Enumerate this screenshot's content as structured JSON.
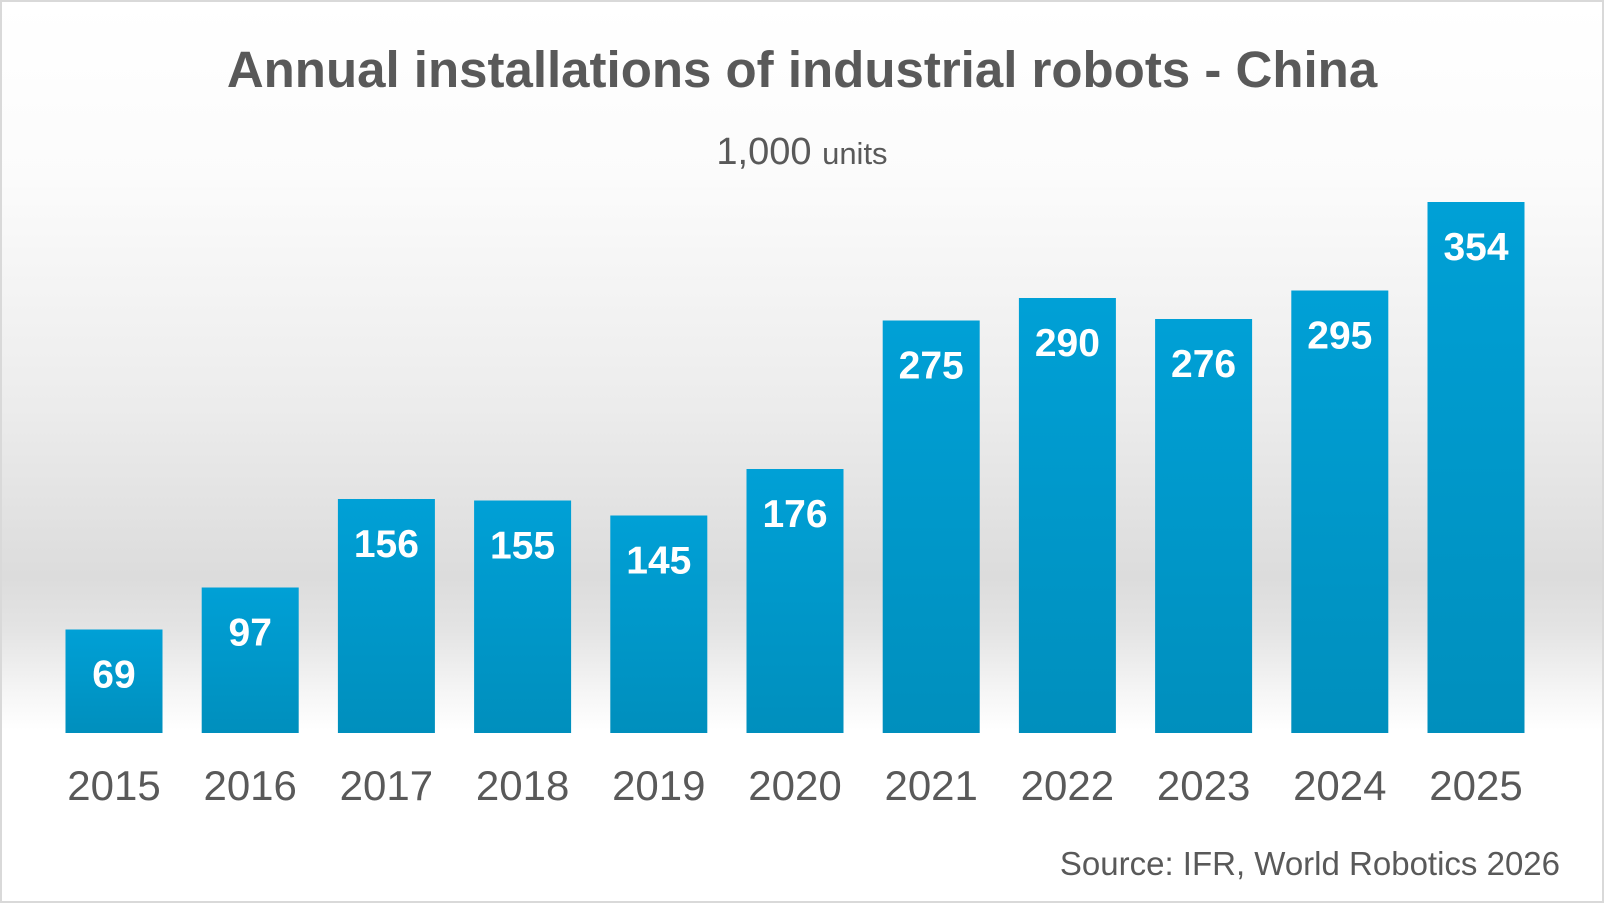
{
  "chart_data": {
    "type": "bar",
    "title": "Annual installations of industrial robots - China",
    "subtitle_number": "1,000",
    "subtitle_units": "units",
    "categories": [
      "2015",
      "2016",
      "2017",
      "2018",
      "2019",
      "2020",
      "2021",
      "2022",
      "2023",
      "2024",
      "2025"
    ],
    "series": [
      {
        "values": [
          69,
          97,
          156,
          155,
          145,
          176,
          275,
          290,
          276,
          295,
          354
        ],
        "color": "#0099cc"
      }
    ],
    "source": "Source: IFR, World Robotics 2026",
    "grid": false,
    "legend": "none",
    "data_labels": true
  }
}
